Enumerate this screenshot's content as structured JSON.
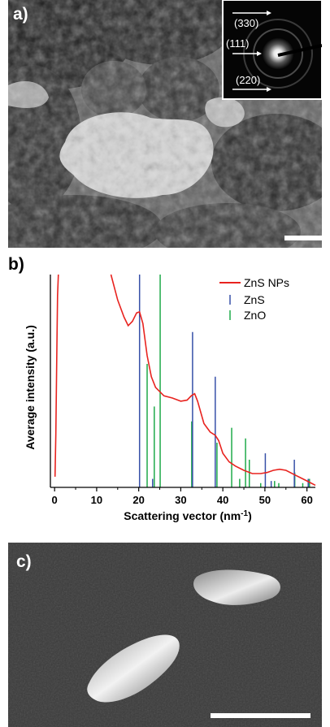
{
  "panels": {
    "a": {
      "letter": "a)",
      "inset_labels": [
        "(330)",
        "(111)",
        "(220)"
      ]
    },
    "b": {
      "letter": "b)"
    },
    "c": {
      "letter": "c)"
    }
  },
  "colors": {
    "zns_nps": "#e8231f",
    "zns": "#3750a8",
    "zno": "#1faa4a"
  },
  "chart_data": {
    "type": "line",
    "xlabel": "Scattering vector (nm",
    "xlabel_sup": "-1",
    "xlabel_end": ")",
    "ylabel": "Average intensity (a.u.)",
    "xlim": [
      -1,
      62
    ],
    "ylim": [
      0,
      1
    ],
    "xticks": [
      0,
      10,
      20,
      30,
      40,
      50,
      60
    ],
    "legend_position": "top-right",
    "series": [
      {
        "name": "ZnS NPs",
        "kind": "curve",
        "points": [
          [
            0.1,
            0.05
          ],
          [
            0.3,
            0.25
          ],
          [
            0.5,
            0.6
          ],
          [
            0.7,
            0.9
          ],
          [
            0.9,
            1.0
          ],
          null,
          [
            13.4,
            1.0
          ],
          [
            15,
            0.88
          ],
          [
            16.5,
            0.8
          ],
          [
            17.5,
            0.76
          ],
          [
            18.5,
            0.78
          ],
          [
            19.5,
            0.82
          ],
          [
            20.2,
            0.825
          ],
          [
            21,
            0.77
          ],
          [
            22,
            0.62
          ],
          [
            23,
            0.52
          ],
          [
            24,
            0.47
          ],
          [
            26,
            0.43
          ],
          [
            28,
            0.42
          ],
          [
            30,
            0.405
          ],
          [
            31.5,
            0.41
          ],
          [
            32.5,
            0.43
          ],
          [
            33.3,
            0.44
          ],
          [
            34,
            0.405
          ],
          [
            35.5,
            0.3
          ],
          [
            37,
            0.26
          ],
          [
            38.2,
            0.245
          ],
          [
            39,
            0.22
          ],
          [
            40,
            0.16
          ],
          [
            41.5,
            0.12
          ],
          [
            43,
            0.1
          ],
          [
            45,
            0.08
          ],
          [
            47,
            0.065
          ],
          [
            49,
            0.065
          ],
          [
            50.5,
            0.07
          ],
          [
            52,
            0.08
          ],
          [
            53.5,
            0.085
          ],
          [
            55,
            0.08
          ],
          [
            57,
            0.06
          ],
          [
            59,
            0.04
          ],
          [
            60.5,
            0.025
          ],
          [
            62,
            0.01
          ]
        ]
      },
      {
        "name": "ZnS",
        "kind": "sticks",
        "sticks": [
          [
            20.2,
            1.0
          ],
          [
            23.3,
            0.04
          ],
          [
            32.8,
            0.73
          ],
          [
            38.2,
            0.52
          ],
          [
            50.1,
            0.16
          ],
          [
            51.5,
            0.03
          ],
          [
            57.0,
            0.13
          ],
          [
            60.3,
            0.04
          ]
        ]
      },
      {
        "name": "ZnO",
        "kind": "sticks",
        "sticks": [
          [
            22.0,
            0.58
          ],
          [
            23.7,
            0.38
          ],
          [
            25.1,
            1.0
          ],
          [
            32.6,
            0.31
          ],
          [
            38.6,
            0.21
          ],
          [
            42.1,
            0.28
          ],
          [
            44.0,
            0.04
          ],
          [
            45.4,
            0.23
          ],
          [
            46.3,
            0.13
          ],
          [
            49.0,
            0.02
          ],
          [
            52.3,
            0.03
          ],
          [
            53.3,
            0.02
          ],
          [
            57.1,
            0.07
          ],
          [
            59.0,
            0.02
          ],
          [
            60.6,
            0.04
          ]
        ]
      }
    ]
  }
}
